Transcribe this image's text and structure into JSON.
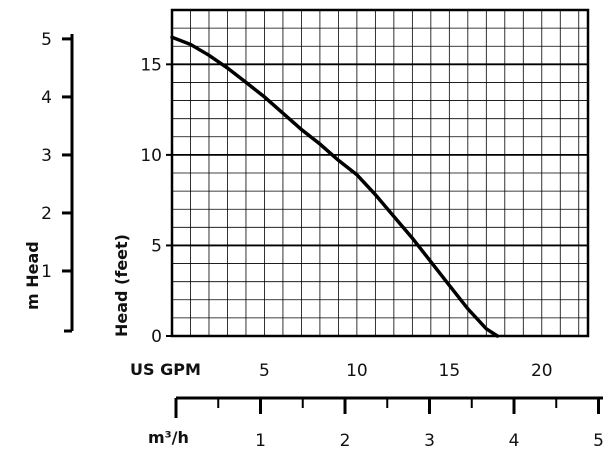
{
  "chart_data": {
    "type": "line",
    "title": "",
    "ylabel": "Head (feet)",
    "xlabel": "US GPM",
    "xlim": [
      0,
      22.5
    ],
    "ylim": [
      0,
      18
    ],
    "grid": true,
    "x_ticks": [
      5,
      10,
      15,
      20
    ],
    "y_ticks": [
      0,
      5,
      10,
      15
    ],
    "series": [
      {
        "x": [
          0,
          1,
          2,
          3,
          4,
          5,
          6,
          7,
          8,
          9,
          10,
          11,
          12,
          13,
          14,
          15,
          16,
          17,
          17.6
        ],
        "y": [
          16.5,
          16.1,
          15.5,
          14.8,
          14.0,
          13.2,
          12.3,
          11.4,
          10.6,
          9.7,
          8.9,
          7.8,
          6.6,
          5.4,
          4.1,
          2.8,
          1.5,
          0.4,
          0
        ]
      }
    ],
    "secondary_y_axis": {
      "label": "m Head",
      "ticks": [
        1,
        2,
        3,
        4,
        5
      ]
    },
    "secondary_x_axis": {
      "label": "m³/h",
      "ticks": [
        1,
        2,
        3,
        4,
        5
      ]
    }
  }
}
